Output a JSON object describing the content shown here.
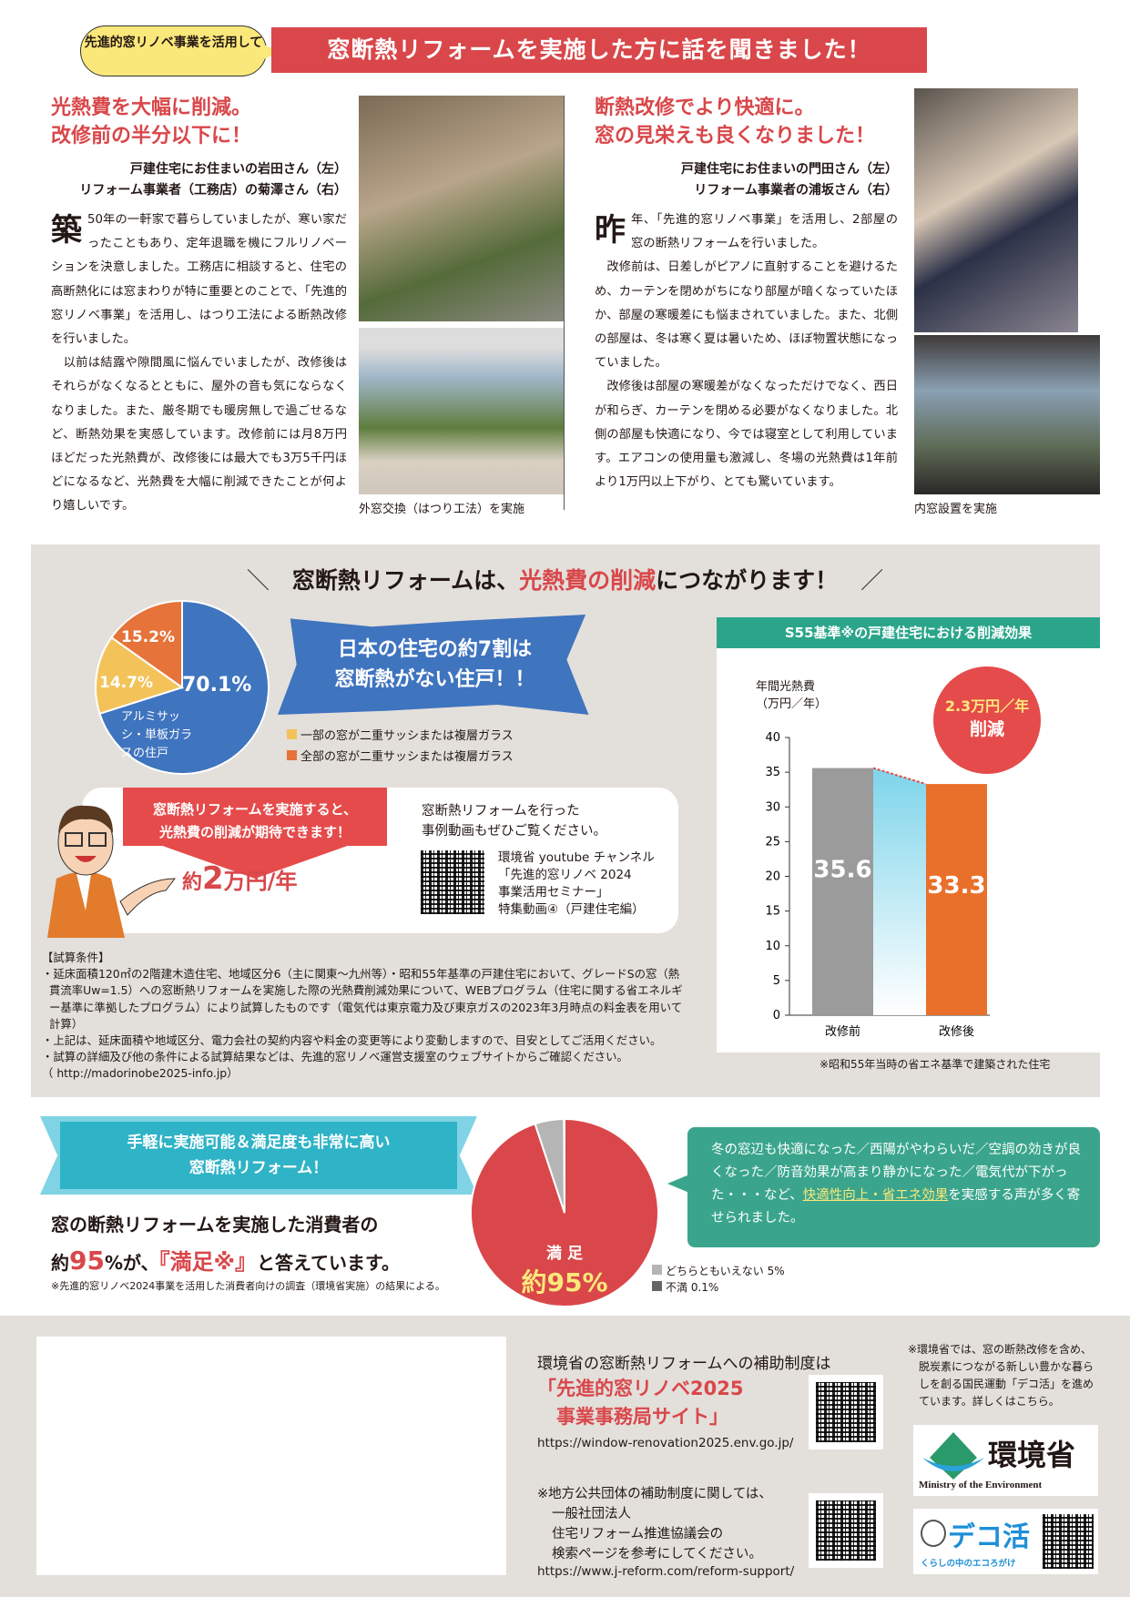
{
  "header": {
    "badge": "先進的窓リノベ事業を活用して",
    "title": "窓断熱リフォームを実施した方に話を聞きました！"
  },
  "story1": {
    "title1": "光熱費を大幅に削減。",
    "title2": "改修前の半分以下に！",
    "byline1": "戸建住宅にお住まいの岩田さん（左）",
    "byline2": "リフォーム事業者（工務店）の菊澤さん（右）",
    "dropcap": "築",
    "p1": "50年の一軒家で暮らしていましたが、寒い家だったこともあり、定年退職を機にフルリノベーションを決意しました。工務店に相談すると、住宅の高断熱化には窓まわりが特に重要とのことで、「先進的窓リノベ事業」を活用し、はつり工法による断熱改修を行いました。",
    "p2": "　以前は結露や隙間風に悩んでいましたが、改修後はそれらがなくなるとともに、屋外の音も気にならなくなりました。また、厳冬期でも暖房無しで過ごせるなど、断熱効果を実感しています。改修前には月8万円ほどだった光熱費が、改修後には最大でも3万5千円ほどになるなど、光熱費を大幅に削減できたことが何より嬉しいです。",
    "caption": "外窓交換（はつり工法）を実施"
  },
  "story2": {
    "title1": "断熱改修でより快適に。",
    "title2": "窓の見栄えも良くなりました！",
    "byline1": "戸建住宅にお住まいの門田さん（左）",
    "byline2": "リフォーム事業者の浦坂さん（右）",
    "dropcap": "昨",
    "p1": "年、「先進的窓リノベ事業」を活用し、2部屋の窓の断熱リフォームを行いました。",
    "p2": "　改修前は、日差しがピアノに直射することを避けるため、カーテンを閉めがちになり部屋が暗くなっていたほか、部屋の寒暖差にも悩まされていました。また、北側の部屋は、冬は寒く夏は暑いため、ほぼ物置状態になっていました。",
    "p3": "　改修後は部屋の寒暖差がなくなっただけでなく、西日が和らぎ、カーテンを閉める必要がなくなりました。北側の部屋も快適になり、今では寝室として利用しています。エアコンの使用量も激減し、冬場の光熱費は1年前より1万円以上下がり、とても驚いています。",
    "caption": "内窓設置を実施"
  },
  "savings": {
    "title_a": "窓断熱リフォームは、",
    "title_b": "光熱費の削減",
    "title_c": "につながります！",
    "pie_label_main": "70.1%",
    "pie_label_yellow": "14.7%",
    "pie_label_orange": "15.2%",
    "pie_desc": "アルミサッシ・単板ガラスの住戸",
    "banner1": "日本の住宅の約7割は",
    "banner2": "窓断熱がない住戸！！",
    "legend_yellow": "一部の窓が二重サッシまたは複層ガラス",
    "legend_orange": "全部の窓が二重サッシまたは複層ガラス",
    "arrow_text1": "窓断熱リフォームを実施すると、",
    "arrow_text2": "光熱費の削減が期待できます！",
    "amount_pre": "約",
    "amount_num": "2",
    "amount_unit": "万円/年",
    "video1": "窓断熱リフォームを行った",
    "video2": "事例動画もぜひご覧ください。",
    "video3": "環境省 youtube チャンネル",
    "video4": "「先進的窓リノベ 2024",
    "video5": "事業活用セミナー」",
    "video6": "特集動画④（戸建住宅編）",
    "cond_title": "【試算条件】",
    "cond1": "・延床面積120㎡の2階建木造住宅、地域区分6（主に関東～九州等）・昭和55年基準の戸建住宅において、グレードSの窓（熱貫流率Uw=1.5）への窓断熱リフォームを実施した際の光熱費削減効果について、WEBプログラム（住宅に関する省エネルギー基準に準拠したプログラム）により試算したものです（電気代は東京電力及び東京ガスの2023年3月時点の料金表を用いて計算）",
    "cond2": "・上記は、延床面積や地域区分、電力会社の契約内容や料金の変更等により変動しますので、目安としてご活用ください。",
    "cond3": "・試算の詳細及び他の条件による試算結果などは、先進的窓リノベ運営支援室のウェブサイトからご確認ください。",
    "cond4": "（ http://madorinobe2025-info.jp）",
    "chart_title": "S55基準※の戸建住宅における削減効果",
    "ylabel1": "年間光熱費",
    "ylabel2": "（万円／年）",
    "callout1": "2.3万円／年",
    "callout2": "削減",
    "chart_note": "※昭和55年当時の省エネ基準で建築された住宅"
  },
  "satisfaction": {
    "ribbon1": "手軽に実施可能＆満足度も非常に高い",
    "ribbon2": "窓断熱リフォーム！",
    "text1": "窓の断熱リフォームを実施した消費者の",
    "text2_pre": "約",
    "text2_num": "95",
    "text2_mid": "%が、",
    "text2_quote": "『満足※』",
    "text2_post": "と答えています。",
    "note": "※先進的窓リノベ2024事業を活用した消費者向けの調査（環境省実施）の結果による。",
    "pie_l1": "満 足",
    "pie_l2": "約95%",
    "legend1": "どちらともいえない 5%",
    "legend2": "不満 0.1%",
    "voice1": "冬の窓辺も快適になった／西陽がやわらいだ／空調の効きが良くなった／防音効果が高まり静かになった／電気代が下がった・・・など、",
    "voice_hl": "快適性向上・省エネ効果",
    "voice2": "を実感する声が多く寄せられました。"
  },
  "footer": {
    "lead": "環境省の窓断熱リフォームへの補助制度は",
    "site1": "「先進的窓リノベ2025",
    "site2": "　事業事務局サイト」",
    "url1": "https://window-renovation2025.env.go.jp/",
    "local1": "※地方公共団体の補助制度に関しては、",
    "local2": "一般社団法人",
    "local3": "住宅リフォーム推進協議会の",
    "local4": "検索ページを参考にしてください。",
    "url2": "https://www.j-reform.com/reform-support/",
    "decokatsu_note": "※環境省では、窓の断熱改修を含め、脱炭素につながる新しい豊かな暮らしを創る国民運動「デコ活」を進めています。詳しくはこちら。",
    "moe_logo": "環境省",
    "moe_en": "Ministry of the Environment",
    "deco_logo": "デコ活",
    "deco_sub": "くらしの中のエコろがけ"
  },
  "colors": {
    "red": "#d9474a",
    "blue": "#3f74bf",
    "yellow": "#f3c35a",
    "orange": "#e5733a",
    "teal": "#2aa58a",
    "gray": "#9b9b9b"
  },
  "chart_data": [
    {
      "type": "pie",
      "values": [
        70.1,
        14.7,
        15.2
      ],
      "labels": [
        "70.1%",
        "14.7%",
        "15.2%"
      ],
      "colors": [
        "#3f74bf",
        "#f3c35a",
        "#e5733a"
      ]
    },
    {
      "type": "bar",
      "title": "S55基準※の戸建住宅における削減効果",
      "ylabel": "年間光熱費（万円／年）",
      "categories": [
        "改修前",
        "改修後"
      ],
      "values": [
        35.6,
        33.3
      ],
      "ylim": [
        0,
        40
      ],
      "yticks": [
        0,
        5,
        10,
        15,
        20,
        25,
        30,
        35,
        40
      ],
      "colors": [
        "#9b9b9b",
        "#e8702a"
      ],
      "grid": false
    },
    {
      "type": "pie",
      "values": [
        94.9,
        5,
        0.1
      ],
      "labels": [
        "満足",
        "どちらともいえない 5%",
        "不満 0.1%"
      ],
      "colors": [
        "#d9474a",
        "#b5b5b5",
        "#666666"
      ]
    }
  ]
}
